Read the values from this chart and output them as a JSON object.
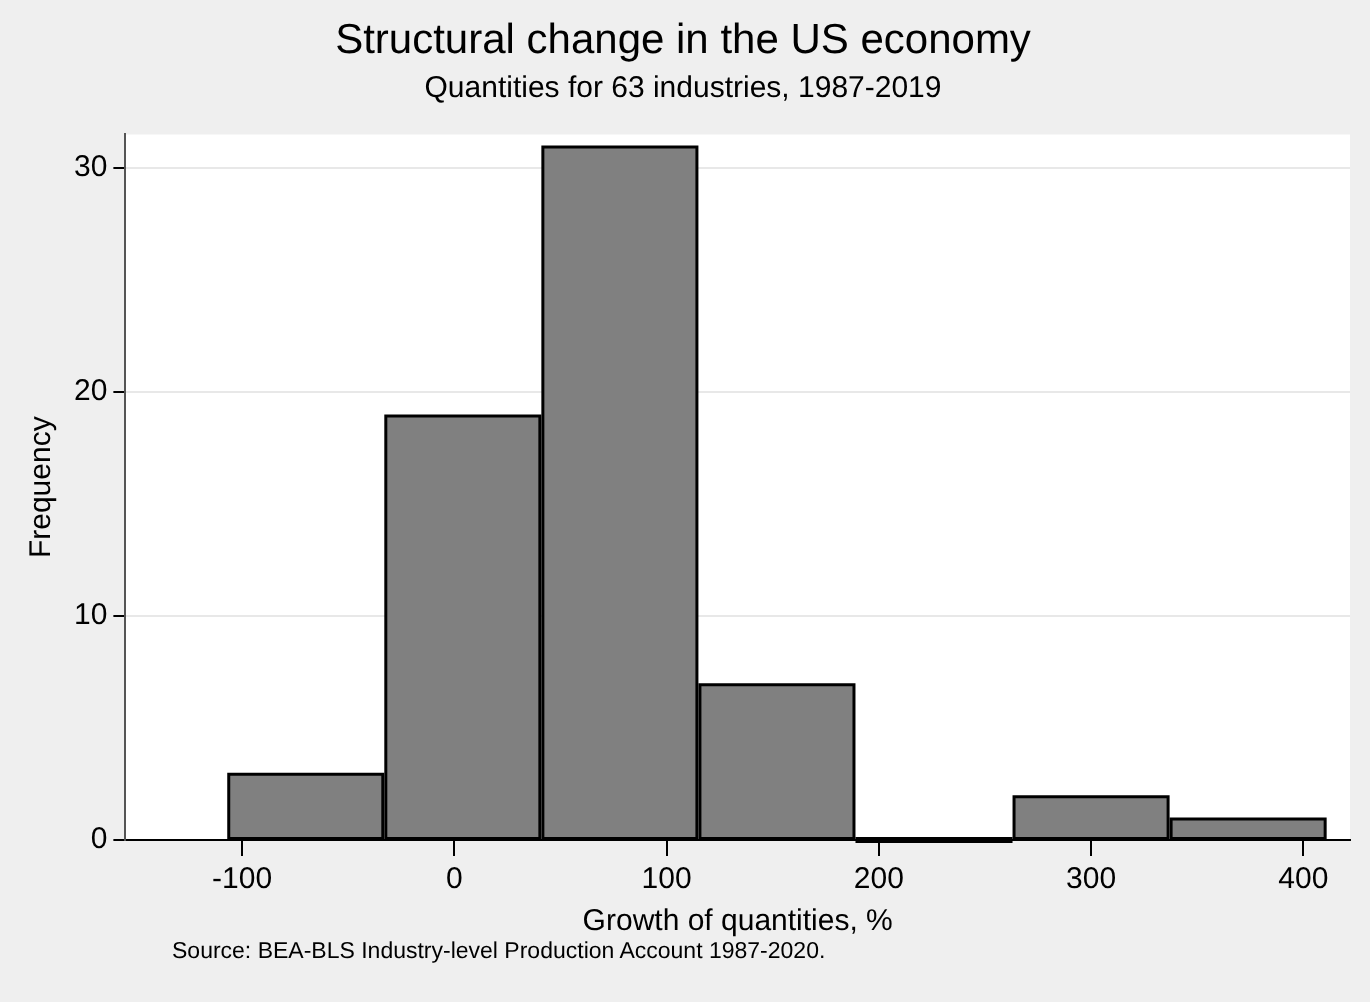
{
  "chart_data": {
    "type": "histogram",
    "title": "Structural change in the US economy",
    "subtitle": "Quantities for 63 industries, 1987-2019",
    "xlabel": "Growth of quantities, %",
    "ylabel": "Frequency",
    "bins": [
      -107,
      -33,
      41,
      115,
      189,
      263,
      337,
      411
    ],
    "values": [
      3,
      19,
      31,
      7,
      0,
      2,
      1
    ],
    "color": "#808080",
    "xlim": [
      -155,
      422
    ],
    "xticks": [
      -100,
      0,
      100,
      200,
      300,
      400
    ],
    "ylim": [
      0,
      31.5
    ],
    "yticks": [
      0,
      10,
      20,
      30
    ],
    "grid": "y",
    "legend": false,
    "annotations": [
      "Source: BEA-BLS Industry-level Production Account 1987-2020."
    ]
  }
}
